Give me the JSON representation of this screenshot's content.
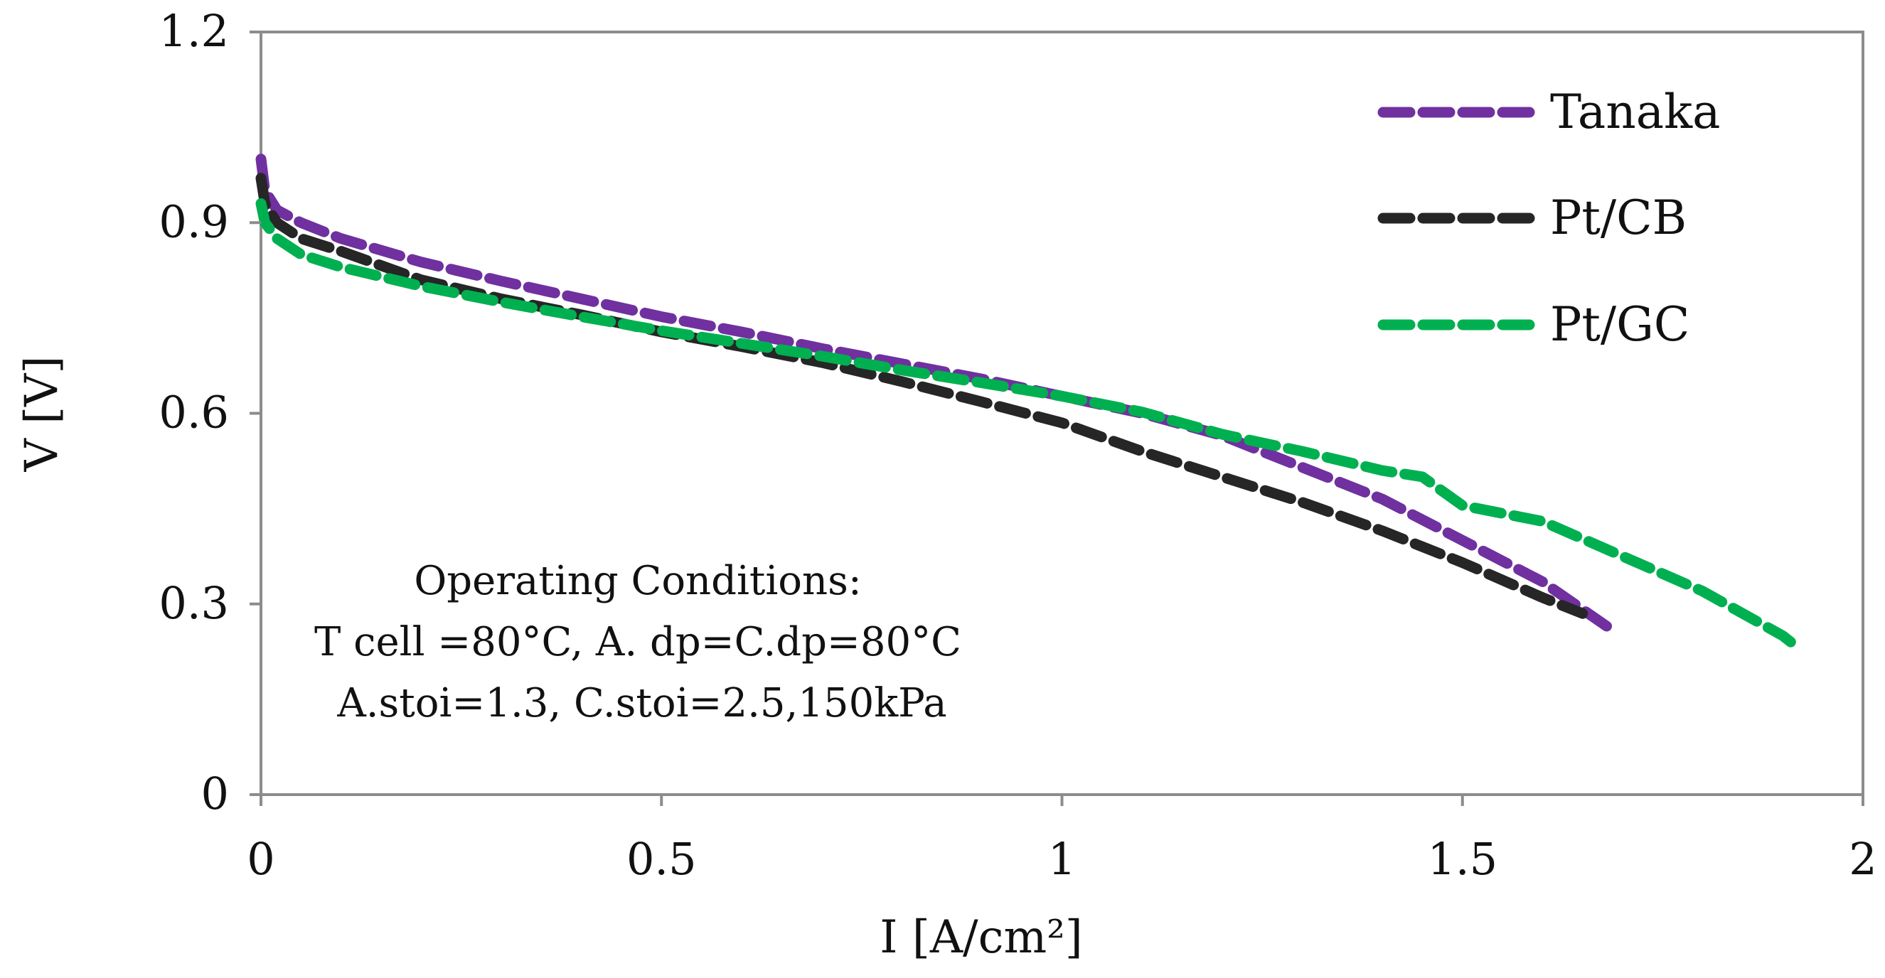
{
  "chart_data": {
    "type": "line",
    "title": "",
    "xlabel": "I [A/cm²]",
    "ylabel": "V [V]",
    "xlim": [
      0,
      2
    ],
    "ylim": [
      0,
      1.2
    ],
    "xticks": [
      0,
      0.5,
      1,
      1.5,
      2
    ],
    "xtick_labels": [
      "0",
      "0.5",
      "1",
      "1.5",
      "2"
    ],
    "yticks": [
      0,
      0.3,
      0.6,
      0.9,
      1.2
    ],
    "ytick_labels": [
      "0",
      "0.3",
      "0.6",
      "0.9",
      "1.2"
    ],
    "grid": false,
    "legend_position": "top-right",
    "series": [
      {
        "name": "Tanaka",
        "color": "#7030a0",
        "x": [
          0,
          0.005,
          0.02,
          0.05,
          0.1,
          0.2,
          0.3,
          0.4,
          0.5,
          0.6,
          0.7,
          0.8,
          0.9,
          1.0,
          1.1,
          1.2,
          1.3,
          1.4,
          1.5,
          1.6,
          1.68
        ],
        "y": [
          1.0,
          0.95,
          0.92,
          0.9,
          0.875,
          0.838,
          0.808,
          0.78,
          0.752,
          0.728,
          0.702,
          0.678,
          0.654,
          0.627,
          0.6,
          0.565,
          0.515,
          0.465,
          0.4,
          0.335,
          0.265
        ]
      },
      {
        "name": "Pt/CB",
        "color": "#262626",
        "x": [
          0,
          0.005,
          0.02,
          0.05,
          0.1,
          0.2,
          0.3,
          0.4,
          0.5,
          0.6,
          0.7,
          0.8,
          0.9,
          1.0,
          1.1,
          1.2,
          1.3,
          1.4,
          1.5,
          1.6,
          1.65
        ],
        "y": [
          0.97,
          0.93,
          0.9,
          0.875,
          0.855,
          0.81,
          0.78,
          0.755,
          0.728,
          0.705,
          0.68,
          0.65,
          0.618,
          0.585,
          0.54,
          0.5,
          0.46,
          0.415,
          0.365,
          0.31,
          0.285
        ]
      },
      {
        "name": "Pt/GC",
        "color": "#00b050",
        "x": [
          0,
          0.005,
          0.02,
          0.05,
          0.1,
          0.2,
          0.3,
          0.4,
          0.5,
          0.6,
          0.7,
          0.8,
          0.9,
          1.0,
          1.1,
          1.2,
          1.3,
          1.4,
          1.45,
          1.5,
          1.6,
          1.7,
          1.8,
          1.9,
          1.92
        ],
        "y": [
          0.93,
          0.9,
          0.875,
          0.85,
          0.83,
          0.8,
          0.775,
          0.752,
          0.73,
          0.71,
          0.69,
          0.668,
          0.648,
          0.627,
          0.602,
          0.567,
          0.54,
          0.51,
          0.5,
          0.455,
          0.43,
          0.375,
          0.32,
          0.25,
          0.23
        ]
      }
    ],
    "annotations": [
      "Operating Conditions:",
      "T cell =80°C, A. dp=C.dp=80°C",
      "A.stoi=1.3, C.stoi=2.5,150kPa"
    ]
  }
}
